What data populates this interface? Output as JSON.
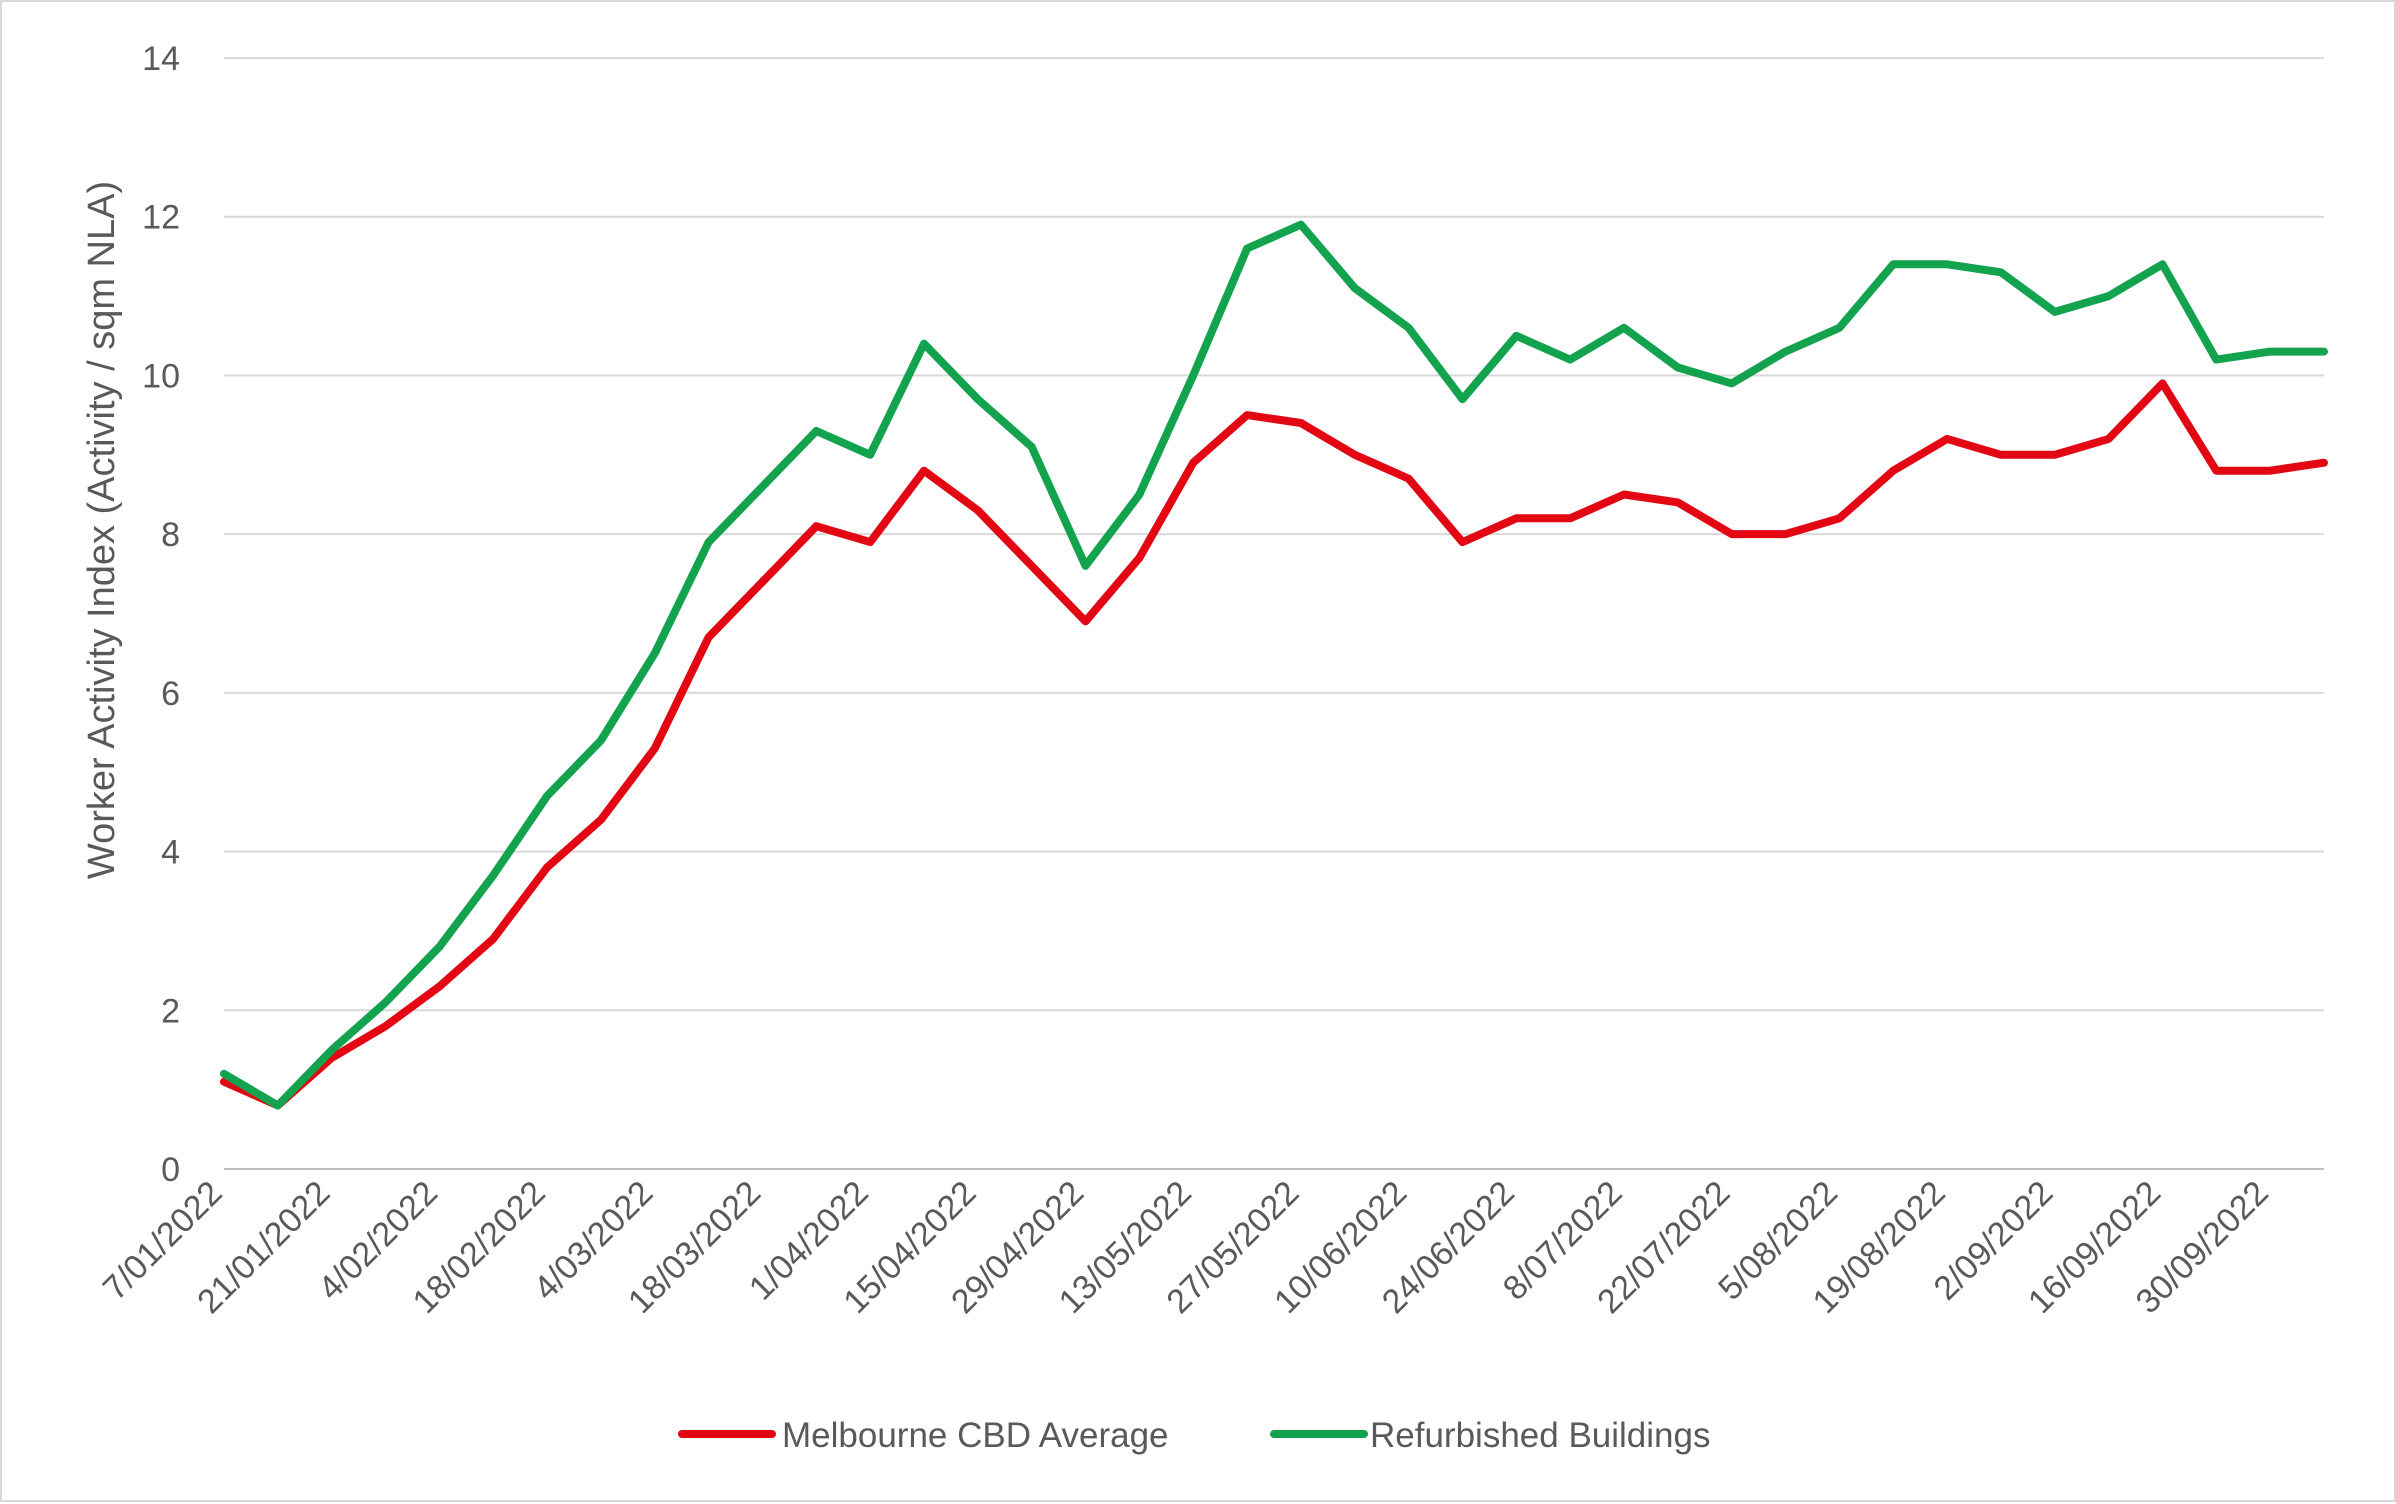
{
  "chart_data": {
    "type": "line",
    "title": "",
    "xlabel": "",
    "ylabel": "Worker Activity Index (Activity / sqm NLA)",
    "ylim": [
      0,
      14
    ],
    "yticks": [
      0,
      2,
      4,
      6,
      8,
      10,
      12,
      14
    ],
    "grid": true,
    "legend_position": "bottom",
    "x": [
      "7/01/2022",
      "14/01/2022",
      "21/01/2022",
      "28/01/2022",
      "4/02/2022",
      "11/02/2022",
      "18/02/2022",
      "25/02/2022",
      "4/03/2022",
      "11/03/2022",
      "18/03/2022",
      "25/03/2022",
      "1/04/2022",
      "8/04/2022",
      "15/04/2022",
      "22/04/2022",
      "29/04/2022",
      "6/05/2022",
      "13/05/2022",
      "20/05/2022",
      "27/05/2022",
      "3/06/2022",
      "10/06/2022",
      "17/06/2022",
      "24/06/2022",
      "1/07/2022",
      "8/07/2022",
      "15/07/2022",
      "22/07/2022",
      "29/07/2022",
      "5/08/2022",
      "12/08/2022",
      "19/08/2022",
      "26/08/2022",
      "2/09/2022",
      "9/09/2022",
      "16/09/2022",
      "23/09/2022",
      "30/09/2022",
      "7/10/2022"
    ],
    "x_tick_labels": [
      "7/01/2022",
      "21/01/2022",
      "4/02/2022",
      "18/02/2022",
      "4/03/2022",
      "18/03/2022",
      "1/04/2022",
      "15/04/2022",
      "29/04/2022",
      "13/05/2022",
      "27/05/2022",
      "10/06/2022",
      "24/06/2022",
      "8/07/2022",
      "22/07/2022",
      "5/08/2022",
      "19/08/2022",
      "2/09/2022",
      "16/09/2022",
      "30/09/2022"
    ],
    "series": [
      {
        "name": "Melbourne CBD Average",
        "color": "#e30613",
        "values": [
          1.1,
          0.8,
          1.4,
          1.8,
          2.3,
          2.9,
          3.8,
          4.4,
          5.3,
          6.7,
          7.4,
          8.1,
          7.9,
          8.8,
          8.3,
          7.6,
          6.9,
          7.7,
          8.9,
          9.5,
          9.4,
          9.0,
          8.7,
          7.9,
          8.2,
          8.2,
          8.5,
          8.4,
          8.0,
          8.0,
          8.2,
          8.8,
          9.2,
          9.0,
          9.0,
          9.2,
          9.9,
          8.8,
          8.8,
          8.9
        ]
      },
      {
        "name": "Refurbished Buildings",
        "color": "#13a34f",
        "values": [
          1.2,
          0.8,
          1.5,
          2.1,
          2.8,
          3.7,
          4.7,
          5.4,
          6.5,
          7.9,
          8.6,
          9.3,
          9.0,
          10.4,
          9.7,
          9.1,
          7.6,
          8.5,
          10.0,
          11.6,
          11.9,
          11.1,
          10.6,
          9.7,
          10.5,
          10.2,
          10.6,
          10.1,
          9.9,
          10.3,
          10.6,
          11.4,
          11.4,
          11.3,
          10.8,
          11.0,
          11.4,
          10.2,
          10.3,
          10.3
        ]
      }
    ]
  }
}
